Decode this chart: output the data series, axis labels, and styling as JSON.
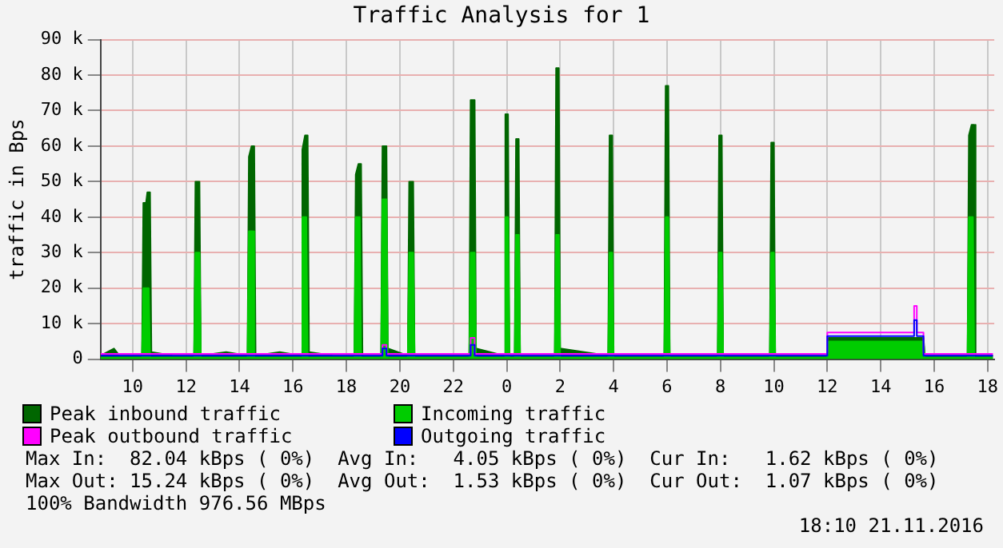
{
  "chart_data": {
    "type": "area",
    "title": "Traffic Analysis for 1",
    "ylabel": "traffic in Bps",
    "xlim": [
      "2016-11-20T08:48",
      "2016-11-21T18:15"
    ],
    "xticks": [
      {
        "value": "2016-11-20T10:00",
        "label": "10"
      },
      {
        "value": "2016-11-20T12:00",
        "label": "12"
      },
      {
        "value": "2016-11-20T14:00",
        "label": "14"
      },
      {
        "value": "2016-11-20T16:00",
        "label": "16"
      },
      {
        "value": "2016-11-20T18:00",
        "label": "18"
      },
      {
        "value": "2016-11-20T20:00",
        "label": "20"
      },
      {
        "value": "2016-11-20T22:00",
        "label": "22"
      },
      {
        "value": "2016-11-21T00:00",
        "label": "0"
      },
      {
        "value": "2016-11-21T02:00",
        "label": "2"
      },
      {
        "value": "2016-11-21T04:00",
        "label": "4"
      },
      {
        "value": "2016-11-21T06:00",
        "label": "6"
      },
      {
        "value": "2016-11-21T08:00",
        "label": "8"
      },
      {
        "value": "2016-11-21T10:00",
        "label": "10"
      },
      {
        "value": "2016-11-21T12:00",
        "label": "12"
      },
      {
        "value": "2016-11-21T14:00",
        "label": "14"
      },
      {
        "value": "2016-11-21T16:00",
        "label": "16"
      },
      {
        "value": "2016-11-21T18:00",
        "label": "18"
      }
    ],
    "ylim": [
      0,
      90
    ],
    "yticks": [
      {
        "value": 0,
        "label": "0"
      },
      {
        "value": 10,
        "label": "10 k"
      },
      {
        "value": 20,
        "label": "20 k"
      },
      {
        "value": 30,
        "label": "30 k"
      },
      {
        "value": 40,
        "label": "40 k"
      },
      {
        "value": 50,
        "label": "50 k"
      },
      {
        "value": 60,
        "label": "60 k"
      },
      {
        "value": 70,
        "label": "70 k"
      },
      {
        "value": 80,
        "label": "80 k"
      },
      {
        "value": 90,
        "label": "90 k"
      }
    ],
    "grid": true,
    "legend": "bottom",
    "marker": "none",
    "series": [
      {
        "name": "Peak inbound traffic",
        "color": "#006600",
        "x": [
          "2016-11-20T08:48",
          "2016-11-20T09:18",
          "2016-11-20T09:30",
          "2016-11-20T10:21",
          "2016-11-20T10:24",
          "2016-11-20T10:30",
          "2016-11-20T10:33",
          "2016-11-20T10:39",
          "2016-11-20T10:42",
          "2016-11-20T11:30",
          "2016-11-20T12:18",
          "2016-11-20T12:21",
          "2016-11-20T12:30",
          "2016-11-20T12:33",
          "2016-11-20T13:30",
          "2016-11-20T14:18",
          "2016-11-20T14:21",
          "2016-11-20T14:27",
          "2016-11-20T14:33",
          "2016-11-20T14:36",
          "2016-11-20T15:30",
          "2016-11-20T16:18",
          "2016-11-20T16:21",
          "2016-11-20T16:27",
          "2016-11-20T16:33",
          "2016-11-20T16:36",
          "2016-11-20T17:30",
          "2016-11-20T18:18",
          "2016-11-20T18:21",
          "2016-11-20T18:27",
          "2016-11-20T18:33",
          "2016-11-20T18:36",
          "2016-11-20T19:18",
          "2016-11-20T19:21",
          "2016-11-20T19:30",
          "2016-11-20T19:33",
          "2016-11-20T20:18",
          "2016-11-20T20:21",
          "2016-11-20T20:30",
          "2016-11-20T20:33",
          "2016-11-20T21:30",
          "2016-11-20T22:36",
          "2016-11-20T22:39",
          "2016-11-20T22:48",
          "2016-11-20T22:51",
          "2016-11-20T23:54",
          "2016-11-20T23:57",
          "2016-11-21T00:03",
          "2016-11-21T00:06",
          "2016-11-21T00:18",
          "2016-11-21T00:21",
          "2016-11-21T00:27",
          "2016-11-21T00:30",
          "2016-11-21T01:48",
          "2016-11-21T01:51",
          "2016-11-21T01:57",
          "2016-11-21T02:00",
          "2016-11-21T03:48",
          "2016-11-21T03:51",
          "2016-11-21T03:57",
          "2016-11-21T04:00",
          "2016-11-21T05:54",
          "2016-11-21T05:57",
          "2016-11-21T06:03",
          "2016-11-21T06:06",
          "2016-11-21T07:54",
          "2016-11-21T07:57",
          "2016-11-21T08:03",
          "2016-11-21T08:06",
          "2016-11-21T09:51",
          "2016-11-21T09:54",
          "2016-11-21T10:00",
          "2016-11-21T10:03",
          "2016-11-21T12:00",
          "2016-11-21T12:03",
          "2016-11-21T15:36",
          "2016-11-21T15:39",
          "2016-11-21T17:15",
          "2016-11-21T17:18",
          "2016-11-21T17:24",
          "2016-11-21T17:30",
          "2016-11-21T17:33",
          "2016-11-21T18:12"
        ],
        "values": [
          1,
          3,
          1,
          1,
          44,
          44,
          47,
          47,
          2,
          1,
          1,
          50,
          50,
          1,
          2,
          1,
          57,
          60,
          60,
          1,
          2,
          1,
          59,
          63,
          63,
          2,
          1,
          1,
          52,
          55,
          55,
          1,
          1,
          60,
          60,
          3,
          1,
          50,
          50,
          1,
          1,
          1,
          73,
          73,
          3,
          1,
          69,
          69,
          1,
          1,
          62,
          62,
          1,
          1,
          82,
          82,
          3,
          1,
          63,
          63,
          1,
          1,
          77,
          77,
          1,
          1,
          63,
          63,
          1,
          1,
          61,
          61,
          1,
          1,
          6,
          6,
          1,
          1,
          63,
          66,
          66,
          1,
          1
        ]
      },
      {
        "name": "Incoming traffic",
        "color": "#00cc00",
        "x": [
          "2016-11-20T08:48",
          "2016-11-20T10:21",
          "2016-11-20T10:24",
          "2016-11-20T10:36",
          "2016-11-20T10:39",
          "2016-11-20T12:18",
          "2016-11-20T12:21",
          "2016-11-20T12:30",
          "2016-11-20T12:33",
          "2016-11-20T14:18",
          "2016-11-20T14:21",
          "2016-11-20T14:30",
          "2016-11-20T14:33",
          "2016-11-20T16:18",
          "2016-11-20T16:21",
          "2016-11-20T16:30",
          "2016-11-20T16:33",
          "2016-11-20T18:18",
          "2016-11-20T18:21",
          "2016-11-20T18:30",
          "2016-11-20T18:33",
          "2016-11-20T19:18",
          "2016-11-20T19:21",
          "2016-11-20T19:30",
          "2016-11-20T19:33",
          "2016-11-20T20:18",
          "2016-11-20T20:21",
          "2016-11-20T20:30",
          "2016-11-20T20:33",
          "2016-11-20T22:36",
          "2016-11-20T22:39",
          "2016-11-20T22:48",
          "2016-11-20T22:51",
          "2016-11-20T23:54",
          "2016-11-20T23:57",
          "2016-11-21T00:03",
          "2016-11-21T00:06",
          "2016-11-21T00:18",
          "2016-11-21T00:21",
          "2016-11-21T00:27",
          "2016-11-21T00:30",
          "2016-11-21T01:48",
          "2016-11-21T01:51",
          "2016-11-21T01:57",
          "2016-11-21T02:00",
          "2016-11-21T03:48",
          "2016-11-21T03:51",
          "2016-11-21T03:57",
          "2016-11-21T04:00",
          "2016-11-21T05:54",
          "2016-11-21T05:57",
          "2016-11-21T06:03",
          "2016-11-21T06:06",
          "2016-11-21T07:54",
          "2016-11-21T07:57",
          "2016-11-21T08:03",
          "2016-11-21T08:06",
          "2016-11-21T09:51",
          "2016-11-21T09:54",
          "2016-11-21T10:00",
          "2016-11-21T10:03",
          "2016-11-21T12:00",
          "2016-11-21T12:03",
          "2016-11-21T15:36",
          "2016-11-21T15:39",
          "2016-11-21T17:15",
          "2016-11-21T17:18",
          "2016-11-21T17:27",
          "2016-11-21T17:30",
          "2016-11-21T18:12"
        ],
        "values": [
          0.5,
          0.5,
          20,
          20,
          0.5,
          0.5,
          30,
          30,
          0.5,
          0.5,
          36,
          36,
          0.5,
          0.5,
          40,
          40,
          0.5,
          0.5,
          40,
          40,
          0.5,
          0.5,
          45,
          45,
          0.5,
          0.5,
          30,
          30,
          0.5,
          0.5,
          30,
          30,
          0.5,
          0.5,
          40,
          40,
          0.5,
          0.5,
          35,
          35,
          0.5,
          0.5,
          35,
          35,
          0.5,
          0.5,
          30,
          30,
          0.5,
          0.5,
          40,
          40,
          0.5,
          0.5,
          30,
          30,
          0.5,
          0.5,
          30,
          30,
          0.5,
          0.5,
          5,
          5,
          0.5,
          0.5,
          40,
          40,
          0.5,
          0.5
        ]
      },
      {
        "name": "Peak outbound traffic",
        "type": "step",
        "color": "#ff00ff",
        "x": [
          "2016-11-20T08:48",
          "2016-11-20T19:21",
          "2016-11-20T19:30",
          "2016-11-20T22:39",
          "2016-11-20T22:48",
          "2016-11-21T12:00",
          "2016-11-21T15:15",
          "2016-11-21T15:21",
          "2016-11-21T15:36",
          "2016-11-21T18:12"
        ],
        "values": [
          1.5,
          4,
          1.5,
          6,
          1.5,
          7.5,
          15,
          7.5,
          1.5,
          1.5
        ]
      },
      {
        "name": "Outgoing traffic",
        "type": "step",
        "color": "#0000ff",
        "x": [
          "2016-11-20T08:48",
          "2016-11-20T19:21",
          "2016-11-20T19:30",
          "2016-11-20T22:39",
          "2016-11-20T22:48",
          "2016-11-21T12:00",
          "2016-11-21T15:15",
          "2016-11-21T15:21",
          "2016-11-21T15:36",
          "2016-11-21T18:12"
        ],
        "values": [
          1,
          3,
          1,
          4,
          1,
          6.5,
          11,
          6.5,
          1,
          1
        ]
      }
    ],
    "annotations": [
      "Max In:  82.04 kBps ( 0%)  Avg In:   4.05 kBps ( 0%)  Cur In:   1.62 kBps ( 0%)",
      "Max Out: 15.24 kBps ( 0%)  Avg Out:  1.53 kBps ( 0%)  Cur Out:  1.07 kBps ( 0%)",
      "100% Bandwidth 976.56 MBps",
      "18:10 21.11.2016"
    ]
  }
}
